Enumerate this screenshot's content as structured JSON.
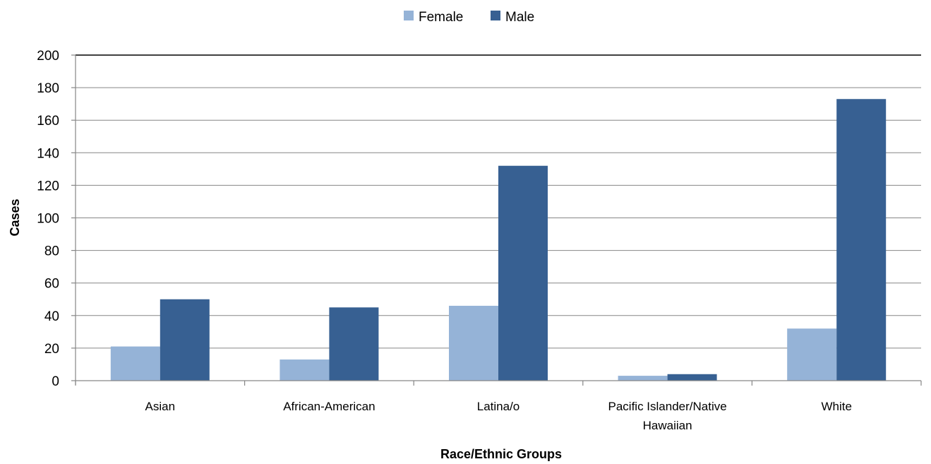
{
  "chart_data": {
    "type": "bar",
    "title": "",
    "xlabel": "Race/Ethnic Groups",
    "ylabel": "Cases",
    "categories": [
      [
        "Asian"
      ],
      [
        "African-American"
      ],
      [
        "Latina/o"
      ],
      [
        "Pacific Islander/Native",
        "Hawaiian"
      ],
      [
        "White"
      ]
    ],
    "series": [
      {
        "name": "Female",
        "color": "#95b3d7",
        "values": [
          21,
          13,
          46,
          3,
          32
        ]
      },
      {
        "name": "Male",
        "color": "#376092",
        "values": [
          50,
          45,
          132,
          4,
          173
        ]
      }
    ],
    "ylim": [
      0,
      200
    ],
    "yticks": [
      "0",
      "20",
      "40",
      "60",
      "80",
      "100",
      "120",
      "140",
      "160",
      "180",
      "200"
    ],
    "grid": true,
    "legend_position": "top-center"
  }
}
